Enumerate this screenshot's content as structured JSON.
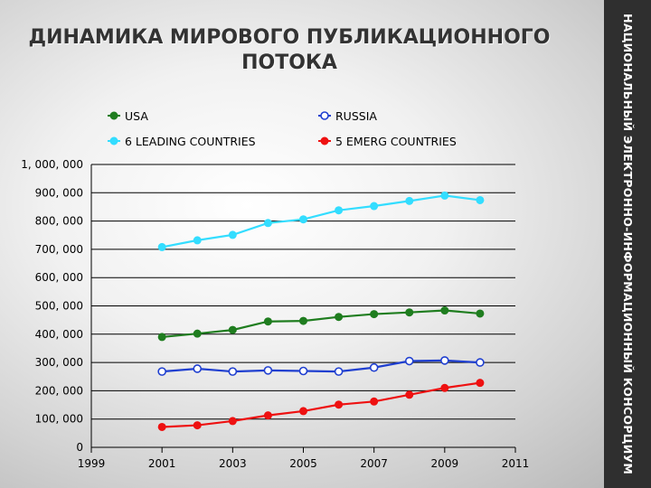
{
  "slide": {
    "title_line1": "ДИНАМИКА МИРОВОГО ПУБЛИКАЦИОННОГО",
    "title_line2": "ПОТОКА",
    "side_text": "НАЦИОНАЛЬНЫЙ ЭЛЕКТРОННО-ИНФОРМАЦИОННЫЙ КОНСОРЦИУМ"
  },
  "chart_data": {
    "type": "line",
    "title": "",
    "xlabel": "",
    "ylabel": "",
    "x": [
      2001,
      2002,
      2003,
      2004,
      2005,
      2006,
      2007,
      2008,
      2009,
      2010
    ],
    "xlim": [
      1999,
      2011
    ],
    "x_ticks": [
      1999,
      2001,
      2003,
      2005,
      2007,
      2009,
      2011
    ],
    "x_tick_labels": [
      "1999",
      "2001",
      "2003",
      "2005",
      "2007",
      "2009",
      "2011"
    ],
    "ylim": [
      0,
      1000000
    ],
    "y_ticks": [
      0,
      100000,
      200000,
      300000,
      400000,
      500000,
      600000,
      700000,
      800000,
      900000,
      1000000
    ],
    "y_tick_labels": [
      "0",
      "100, 000",
      "200, 000",
      "300, 000",
      "400, 000",
      "500, 000",
      "600, 000",
      "700, 000",
      "800, 000",
      "900, 000",
      "1, 000, 000"
    ],
    "grid": "horizontal",
    "legend_position": "top",
    "series": [
      {
        "name": "USA",
        "color": "#1f7d1f",
        "marker": "filled-circle",
        "values": [
          390000,
          402000,
          415000,
          445000,
          447000,
          461000,
          471000,
          477000,
          484000,
          473000
        ]
      },
      {
        "name": "RUSSIA",
        "color": "#1f3fd0",
        "marker": "open-circle",
        "values": [
          268000,
          278000,
          268000,
          272000,
          270000,
          268000,
          282000,
          305000,
          307000,
          300000
        ]
      },
      {
        "name": "6 LEADING COUNTRIES",
        "color": "#33ddff",
        "marker": "filled-circle",
        "values": [
          708000,
          732000,
          751000,
          793000,
          806000,
          838000,
          853000,
          871000,
          890000,
          874000
        ]
      },
      {
        "name": "5 EMERG COUNTRIES",
        "color": "#ee1111",
        "marker": "filled-circle",
        "values": [
          72000,
          78000,
          93000,
          113000,
          128000,
          151000,
          162000,
          186000,
          210000,
          228000
        ]
      }
    ]
  }
}
